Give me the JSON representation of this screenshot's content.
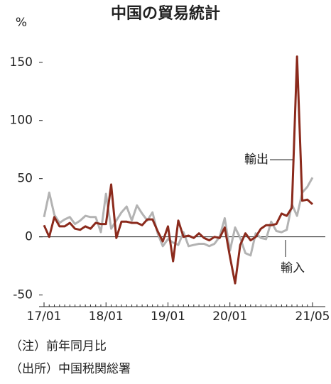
{
  "chart_data": {
    "type": "line",
    "title": "中国の貿易統計",
    "y_unit": "%",
    "categories": [
      "17/01",
      null,
      null,
      null,
      null,
      null,
      null,
      null,
      null,
      null,
      null,
      null,
      "18/01",
      null,
      null,
      null,
      null,
      null,
      null,
      null,
      null,
      null,
      null,
      null,
      "19/01",
      null,
      null,
      null,
      null,
      null,
      null,
      null,
      null,
      null,
      null,
      null,
      "20/01",
      null,
      null,
      null,
      null,
      null,
      null,
      null,
      null,
      null,
      null,
      null,
      null,
      null,
      null,
      null,
      "21/05"
    ],
    "series": [
      {
        "name": "輸出",
        "color": "#8b2a1c",
        "values": [
          10,
          0,
          17,
          9,
          9,
          12,
          7,
          6,
          9,
          7,
          12,
          11,
          11,
          45,
          -1,
          13,
          13,
          12,
          12,
          10,
          15,
          15,
          5,
          -4,
          9,
          -21,
          14,
          0,
          1,
          -1,
          3,
          -1,
          -3,
          0,
          -1,
          8,
          -17,
          -40,
          -7,
          3,
          -3,
          0,
          7,
          10,
          10,
          11,
          20,
          18,
          25,
          155,
          31,
          32,
          28
        ]
      },
      {
        "name": "輸入",
        "color": "#b3b3b3",
        "values": [
          17,
          38,
          19,
          12,
          15,
          17,
          11,
          14,
          18,
          17,
          17,
          4,
          37,
          7,
          14,
          21,
          26,
          14,
          27,
          20,
          14,
          21,
          3,
          -8,
          -2,
          -5,
          -7,
          4,
          -8,
          -7,
          -6,
          -6,
          -8,
          -6,
          0,
          16,
          -12,
          8,
          -1,
          -14,
          -16,
          3,
          -1,
          -2,
          13,
          5,
          4,
          6,
          28,
          18,
          38,
          43,
          51
        ]
      }
    ],
    "ylim": [
      -60,
      170
    ],
    "yticks": [
      -50,
      0,
      50,
      100,
      150
    ],
    "notes": [
      "（注）前年同月比",
      "（出所）中国税関総署"
    ]
  }
}
